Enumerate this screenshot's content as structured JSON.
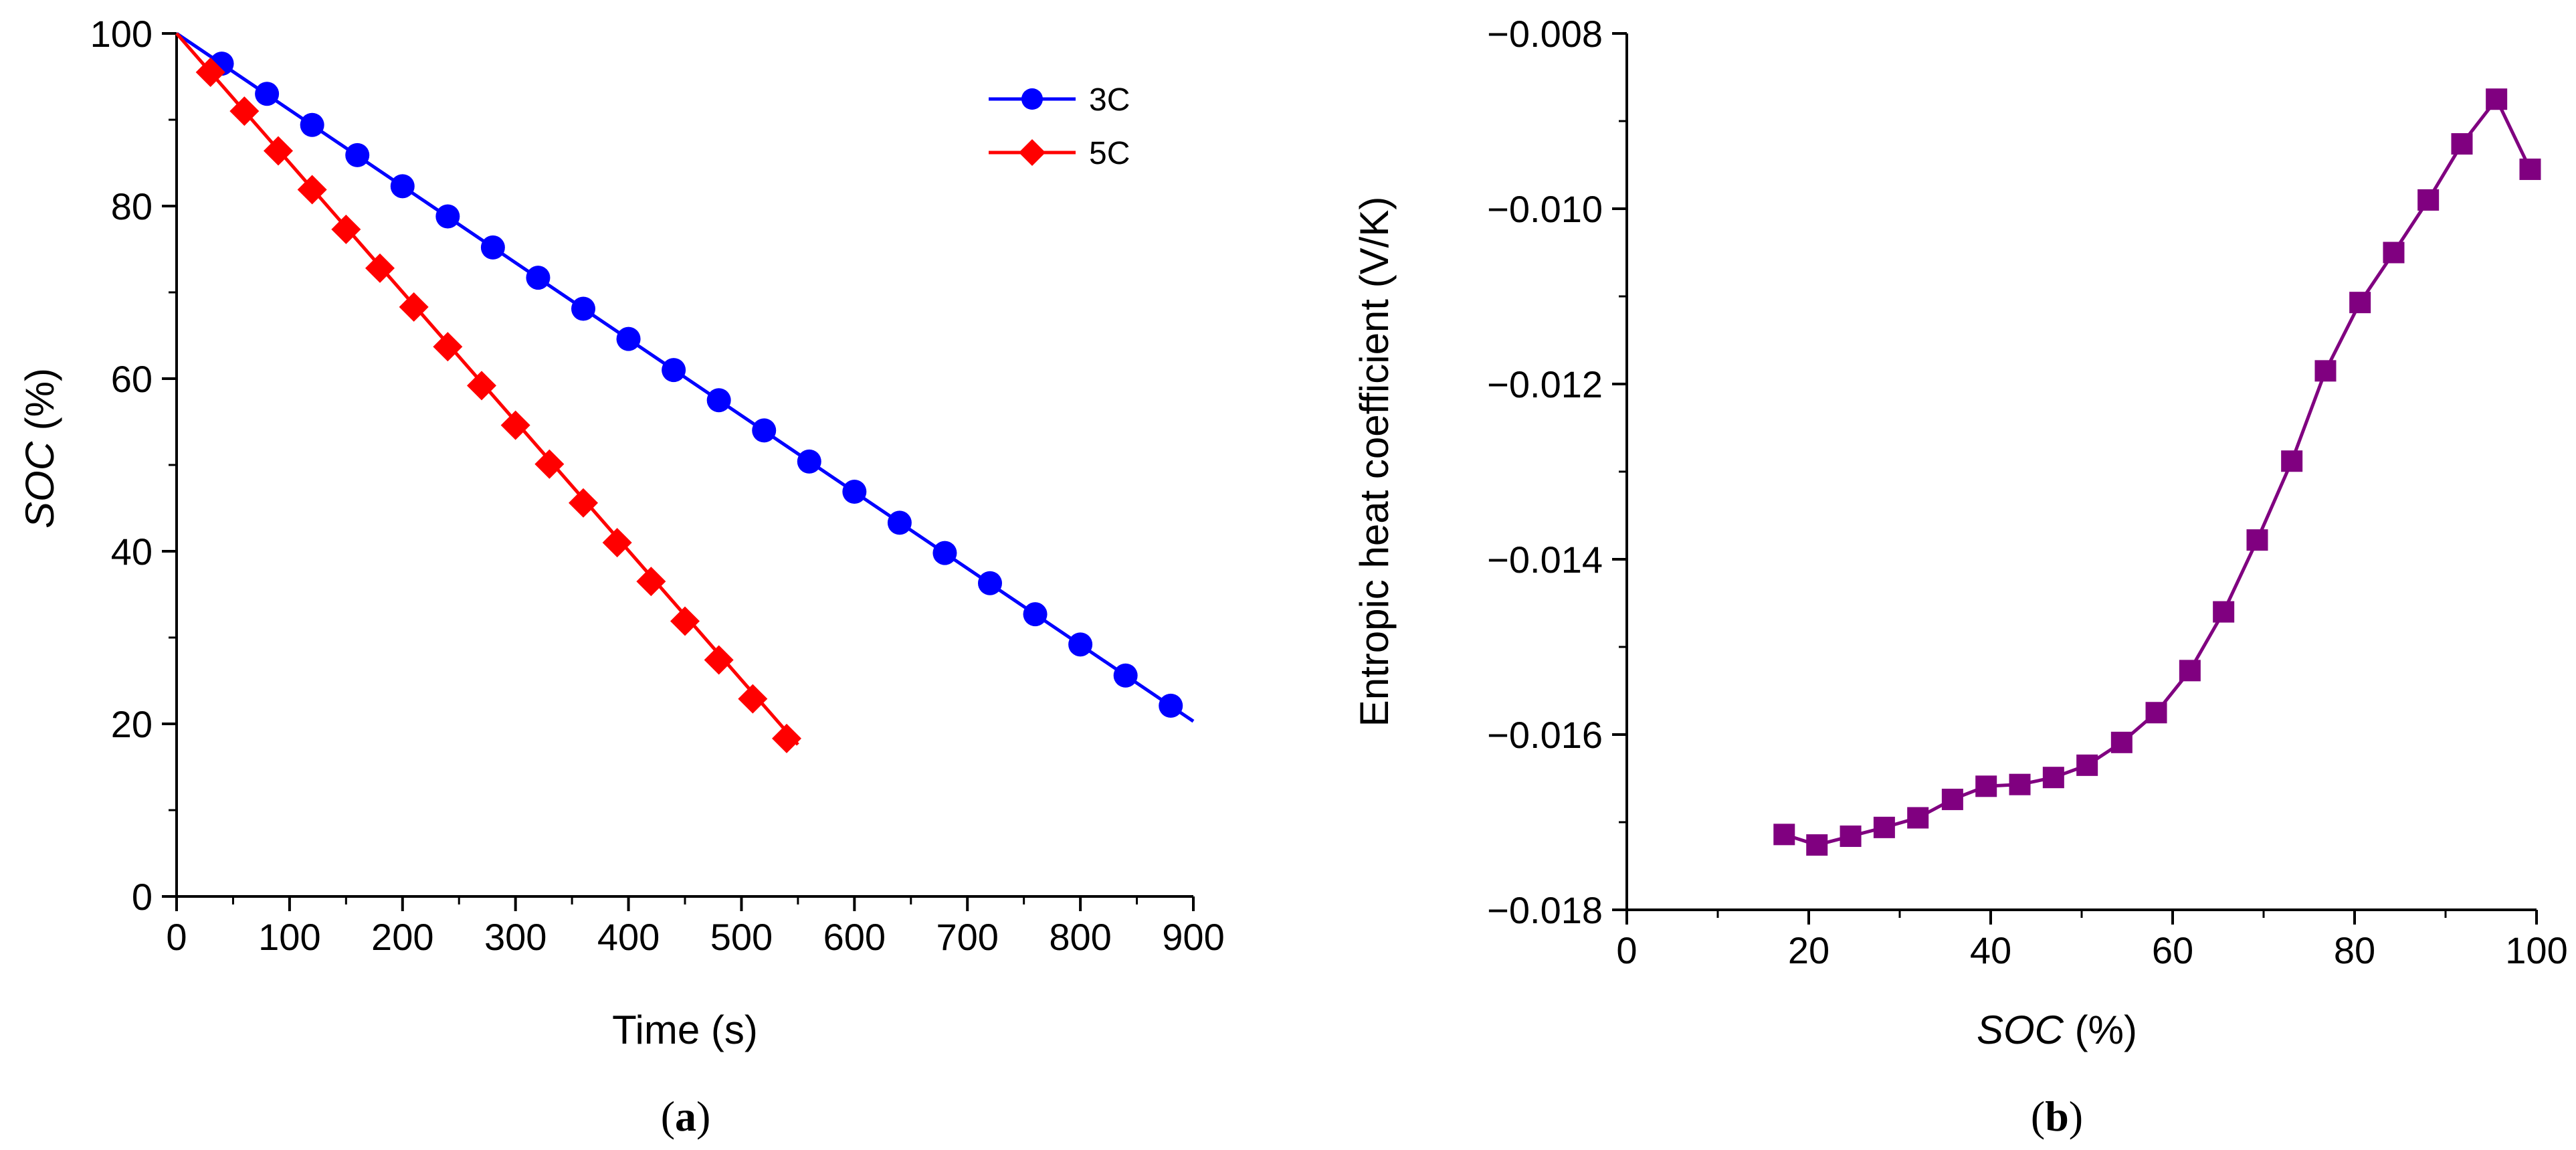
{
  "chart_data": [
    {
      "type": "line",
      "panel": "a",
      "panel_label": {
        "open": "(",
        "letter": "a",
        "close": ")"
      },
      "xlabel": "Time (s)",
      "ylabel": {
        "italic": "SOC",
        "rest": " (%)"
      },
      "xlim": [
        0,
        900
      ],
      "ylim": [
        0,
        100
      ],
      "xticks": [
        0,
        100,
        200,
        300,
        400,
        500,
        600,
        700,
        800,
        900
      ],
      "yticks": [
        0,
        20,
        40,
        60,
        80,
        100
      ],
      "grid": false,
      "legend_position": "top-right",
      "series": [
        {
          "name": "3C",
          "color": "#0000ff",
          "marker": "circle",
          "line": {
            "x": [
              0,
              900
            ],
            "y": [
              100,
              20.3
            ]
          },
          "x": [
            40,
            80,
            120,
            160,
            200,
            240,
            280,
            320,
            360,
            400,
            440,
            480,
            520,
            560,
            600,
            640,
            680,
            720,
            760,
            800,
            840,
            880
          ],
          "y": [
            96.5,
            93,
            89.4,
            85.9,
            82.3,
            78.8,
            75.2,
            71.7,
            68.1,
            64.6,
            61,
            57.5,
            54,
            50.4,
            46.9,
            43.3,
            39.8,
            36.3,
            32.7,
            29.2,
            25.6,
            22.1
          ]
        },
        {
          "name": "5C",
          "color": "#ff0000",
          "marker": "diamond",
          "line": {
            "x": [
              0,
              550
            ],
            "y": [
              100,
              17.6
            ]
          },
          "x": [
            30,
            60,
            90,
            120,
            150,
            180,
            210,
            240,
            270,
            300,
            330,
            360,
            390,
            420,
            450,
            480,
            510,
            540
          ],
          "y": [
            95.5,
            91,
            86.4,
            81.9,
            77.3,
            72.8,
            68.3,
            63.7,
            59.2,
            54.6,
            50.1,
            45.6,
            41,
            36.5,
            31.9,
            27.4,
            22.9,
            18.3
          ]
        }
      ]
    },
    {
      "type": "line",
      "panel": "b",
      "panel_label": {
        "open": "(",
        "letter": "b",
        "close": ")"
      },
      "xlabel": {
        "italic": "SOC",
        "rest": " (%)"
      },
      "ylabel": "Entropic heat coefficient (V/K)",
      "xlim": [
        0,
        100
      ],
      "ylim": [
        -0.018,
        -0.008
      ],
      "xticks": [
        0,
        20,
        40,
        60,
        80,
        100
      ],
      "yticks": [
        -0.018,
        -0.016,
        -0.014,
        -0.012,
        -0.01,
        -0.008
      ],
      "ytick_labels": [
        "−0.018",
        "−0.016",
        "−0.014",
        "−0.012",
        "−0.010",
        "−0.008"
      ],
      "grid": false,
      "series": [
        {
          "name": "Entropic heat coefficient",
          "color": "#800080",
          "marker": "square",
          "x": [
            17.3,
            20.9,
            24.6,
            28.3,
            32,
            35.8,
            39.5,
            43.2,
            46.9,
            50.6,
            54.4,
            58.2,
            61.9,
            65.6,
            69.3,
            73.1,
            76.8,
            80.6,
            84.3,
            88.1,
            91.8,
            95.6,
            99.3
          ],
          "y": [
            -0.01714,
            -0.01726,
            -0.01716,
            -0.01706,
            -0.01695,
            -0.01674,
            -0.01659,
            -0.01657,
            -0.01649,
            -0.01635,
            -0.01609,
            -0.01575,
            -0.01527,
            -0.0146,
            -0.01378,
            -0.01288,
            -0.01185,
            -0.01107,
            -0.0105,
            -0.0099,
            -0.00926,
            -0.00875,
            -0.00955
          ]
        }
      ]
    }
  ]
}
